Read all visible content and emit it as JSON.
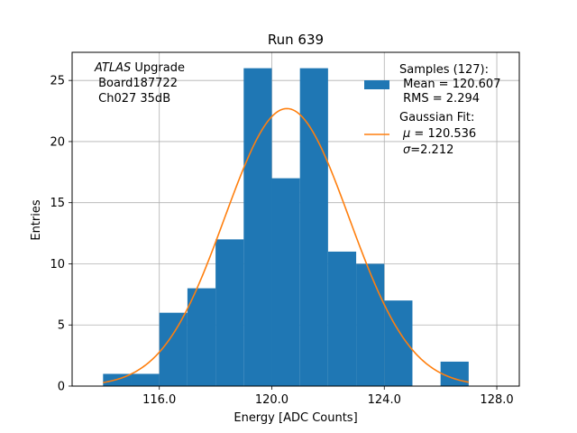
{
  "chart_data": {
    "type": "bar",
    "title": "Run 639",
    "xlabel": "Energy [ADC Counts]",
    "ylabel": "Entries",
    "xlim": [
      112.9,
      128.8
    ],
    "ylim": [
      0,
      27.3
    ],
    "xticks": [
      116.0,
      120.0,
      124.0,
      128.0
    ],
    "xtick_labels": [
      "116.0",
      "120.0",
      "124.0",
      "128.0"
    ],
    "yticks": [
      0,
      5,
      10,
      15,
      20,
      25
    ],
    "ytick_labels": [
      "0",
      "5",
      "10",
      "15",
      "20",
      "25"
    ],
    "grid": true,
    "histogram": {
      "bin_edges": [
        114,
        115,
        116,
        117,
        118,
        119,
        120,
        121,
        122,
        123,
        124,
        125,
        126,
        127
      ],
      "counts": [
        1,
        1,
        6,
        8,
        12,
        26,
        17,
        26,
        11,
        10,
        7,
        0,
        2
      ],
      "color": "#1f77b4"
    },
    "fit": {
      "name": "Gaussian Fit",
      "mu": 120.536,
      "sigma": 2.212,
      "peak": 22.7,
      "x_range": [
        114,
        127
      ],
      "color": "#ff7f0e"
    },
    "annotation": {
      "line1_italic": "ATLAS",
      "line1_rest": " Upgrade",
      "line2": " Board187722",
      "line3": " Ch027 35dB"
    },
    "legend": {
      "position": "top-right",
      "samples": {
        "line1": "Samples (127):",
        "line2": " Mean = 120.607",
        "line3": " RMS = 2.294"
      },
      "fit": {
        "line1": "Gaussian Fit:",
        "line2_sym": "μ",
        "line2_rest": " = 120.536",
        "line3_sym": "σ",
        "line3_rest": "=2.212"
      }
    }
  }
}
